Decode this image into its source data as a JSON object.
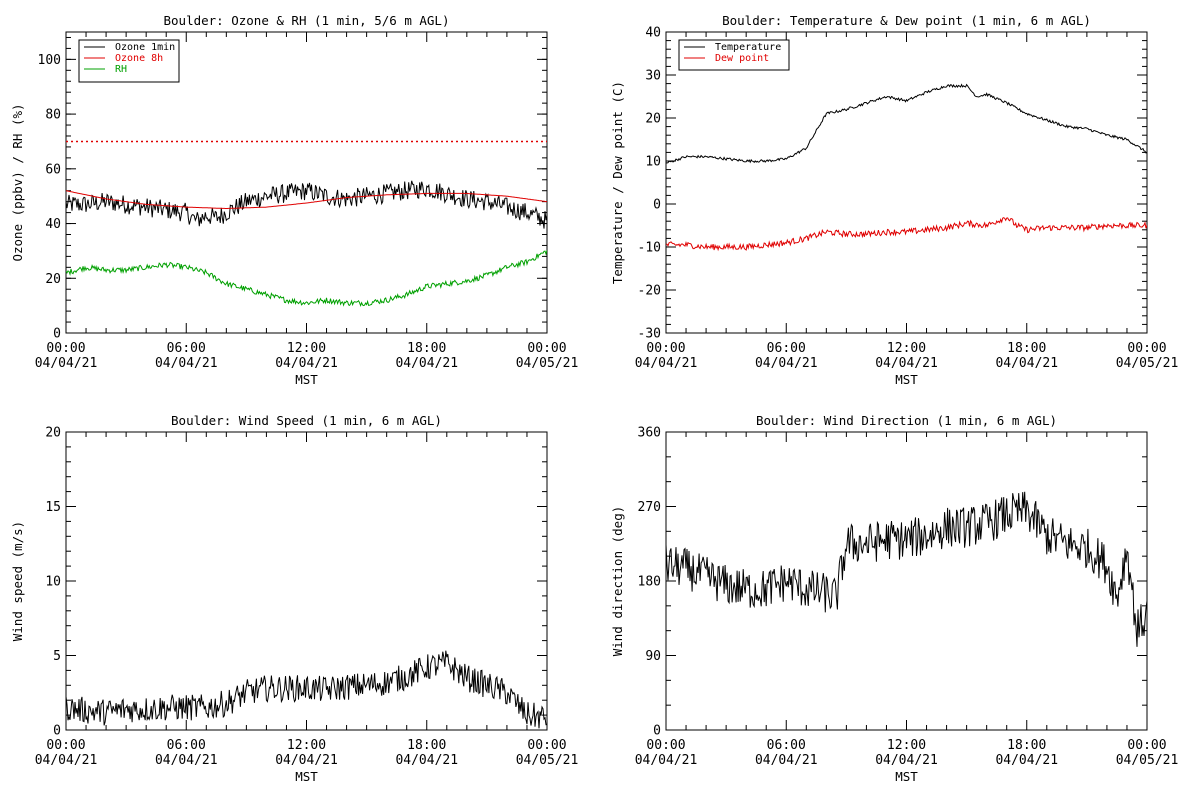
{
  "colors": {
    "ozone_1min": "#000000",
    "ozone_8h": "#e00000",
    "rh": "#00a000",
    "temperature": "#000000",
    "dew_point": "#e00000",
    "wind": "#000000",
    "threshold": "#e00000"
  },
  "x_axis": {
    "times": [
      "00:00",
      "06:00",
      "12:00",
      "18:00",
      "00:00"
    ],
    "dates": [
      "04/04/21",
      "04/04/21",
      "04/04/21",
      "04/04/21",
      "04/05/21"
    ],
    "label": "MST",
    "range_hours": [
      0,
      24
    ]
  },
  "chart_data": [
    {
      "type": "line",
      "title": "Boulder: Ozone & RH (1 min, 5/6 m AGL)",
      "ylabel": "Ozone (ppbv) / RH (%)",
      "ylim": [
        0,
        110
      ],
      "yticks": [
        0,
        20,
        40,
        60,
        80,
        100
      ],
      "reference_line": 70,
      "legend": "top-left",
      "series": [
        {
          "name": "Ozone 1min",
          "color_key": "ozone_1min",
          "noise": 3.5,
          "x": [
            0,
            1,
            2,
            3,
            4,
            5,
            6,
            6.5,
            7,
            7.5,
            8,
            8.5,
            9,
            10,
            11,
            12,
            13,
            14,
            15,
            16,
            17,
            18,
            19,
            20,
            21,
            21.5,
            22,
            22.5,
            23,
            24
          ],
          "y": [
            47,
            47,
            48,
            47,
            46,
            45,
            44,
            41,
            43,
            42,
            44,
            46,
            48,
            50,
            51,
            52,
            50,
            49,
            50,
            51,
            52,
            53,
            51,
            49,
            48,
            47,
            46,
            45,
            44,
            41
          ]
        },
        {
          "name": "Ozone 8h",
          "color_key": "ozone_8h",
          "noise": 0,
          "x": [
            0,
            2,
            4,
            6,
            8,
            10,
            12,
            14,
            16,
            18,
            20,
            22,
            24
          ],
          "y": [
            52,
            49,
            47,
            46,
            45.5,
            46,
            47.5,
            49.5,
            50.5,
            51,
            51,
            50,
            48
          ]
        },
        {
          "name": "RH",
          "color_key": "rh",
          "noise": 1,
          "x": [
            0,
            1,
            2,
            3,
            4,
            5,
            6,
            7,
            8,
            9,
            10,
            11,
            12,
            13,
            14,
            15,
            16,
            17,
            18,
            19,
            20,
            21,
            22,
            23,
            24
          ],
          "y": [
            22,
            24,
            23,
            23,
            24,
            25,
            24,
            22,
            18,
            16,
            14,
            12,
            11,
            12,
            11,
            11,
            12,
            14,
            17,
            18,
            19,
            21,
            24,
            26,
            30
          ]
        }
      ]
    },
    {
      "type": "line",
      "title": "Boulder: Temperature & Dew point (1 min, 6 m AGL)",
      "ylabel": "Temperature / Dew point (C)",
      "ylim": [
        -30,
        40
      ],
      "yticks": [
        -30,
        -20,
        -10,
        0,
        10,
        20,
        30,
        40
      ],
      "legend": "top-left",
      "series": [
        {
          "name": "Temperature",
          "color_key": "temperature",
          "noise": 0.3,
          "x": [
            0,
            1,
            2,
            3,
            4,
            5,
            6,
            7,
            7.5,
            8,
            8.5,
            9,
            10,
            11,
            12,
            13,
            14,
            15,
            15.5,
            16,
            17,
            18,
            19,
            20,
            21,
            22,
            23,
            24
          ],
          "y": [
            9.5,
            11,
            11,
            10.5,
            10,
            10,
            10.5,
            13,
            17,
            21,
            21.5,
            22,
            23.5,
            25,
            24,
            26,
            27.5,
            27.5,
            25,
            25.5,
            23.5,
            21,
            19.5,
            18,
            17.5,
            16,
            15,
            12
          ]
        },
        {
          "name": "Dew point",
          "color_key": "dew_point",
          "noise": 0.7,
          "x": [
            0,
            1,
            2,
            3,
            4,
            5,
            6,
            7,
            8,
            9,
            10,
            11,
            12,
            13,
            14,
            15,
            16,
            17,
            17.5,
            18,
            19,
            20,
            21,
            22,
            23,
            24
          ],
          "y": [
            -9.5,
            -9.5,
            -10,
            -10,
            -10,
            -9.5,
            -9,
            -8,
            -6.5,
            -7,
            -7,
            -6.5,
            -6.5,
            -6,
            -5.5,
            -4.5,
            -5,
            -3,
            -5,
            -6,
            -5.5,
            -5.5,
            -5.5,
            -5,
            -5,
            -5
          ]
        }
      ]
    },
    {
      "type": "line",
      "title": "Boulder: Wind Speed (1 min, 6 m AGL)",
      "ylabel": "Wind speed (m/s)",
      "ylim": [
        0,
        20
      ],
      "yticks": [
        0,
        5,
        10,
        15,
        20
      ],
      "series": [
        {
          "name": "",
          "color_key": "wind",
          "noise": 0.9,
          "x": [
            0,
            1,
            2,
            3,
            4,
            5,
            6,
            7,
            8,
            9,
            10,
            11,
            12,
            13,
            14,
            15,
            16,
            17,
            18,
            19,
            20,
            21,
            22,
            23,
            24
          ],
          "y": [
            1.5,
            1.3,
            1.2,
            1.4,
            1.4,
            1.5,
            1.5,
            1.5,
            1.8,
            2.5,
            2.8,
            2.8,
            2.8,
            2.7,
            2.9,
            3,
            3.2,
            3.6,
            4.2,
            4.5,
            3.5,
            3,
            2.5,
            1,
            0.8
          ]
        }
      ]
    },
    {
      "type": "line",
      "title": "Boulder: Wind Direction (1 min, 6 m AGL)",
      "ylabel": "Wind direction (deg)",
      "ylim": [
        0,
        360
      ],
      "yticks": [
        0,
        90,
        180,
        270,
        360
      ],
      "series": [
        {
          "name": "",
          "color_key": "wind",
          "noise": 25,
          "x": [
            0,
            1,
            2,
            3,
            4,
            5,
            6,
            7,
            8,
            8.5,
            9,
            10,
            11,
            12,
            13,
            14,
            15,
            16,
            17,
            18,
            19,
            20,
            21,
            22,
            22.5,
            23,
            23.5,
            24
          ],
          "y": [
            200,
            195,
            185,
            175,
            170,
            170,
            180,
            170,
            165,
            160,
            225,
            225,
            230,
            230,
            235,
            245,
            245,
            250,
            260,
            265,
            235,
            225,
            220,
            200,
            160,
            220,
            120,
            140
          ]
        }
      ]
    }
  ]
}
